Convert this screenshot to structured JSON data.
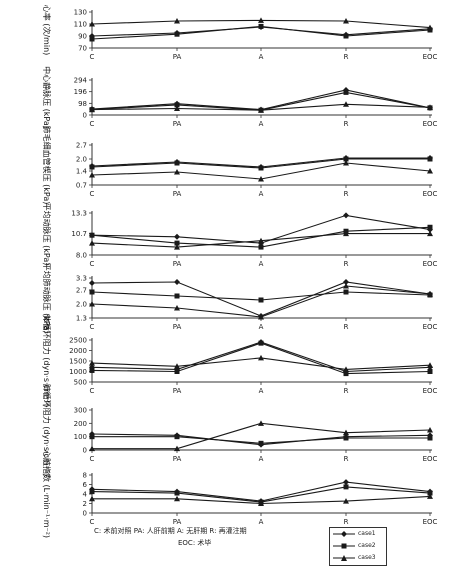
{
  "caption": {
    "line1": "C: 术前对照  PA: 人肝前期  A: 无肝期  R: 再灌注期",
    "line2": "EOC: 术毕"
  },
  "legend": [
    "case1",
    "case2",
    "case3"
  ],
  "colors": {
    "line": "#1a1a1a",
    "axis": "#333333"
  },
  "chart_data": [
    {
      "type": "line",
      "ylabel": "心率 (次/min)",
      "categories": [
        "C",
        "PA",
        "A",
        "R",
        "EOC"
      ],
      "yticks": [
        "130",
        "110",
        "90",
        "70"
      ],
      "ylim": [
        70,
        130
      ],
      "series": [
        {
          "name": "case1",
          "marker": "diamond",
          "values": [
            90,
            95,
            105,
            92,
            102
          ]
        },
        {
          "name": "case2",
          "marker": "square",
          "values": [
            85,
            93,
            106,
            90,
            100
          ]
        },
        {
          "name": "case3",
          "marker": "triangle",
          "values": [
            110,
            115,
            116,
            115,
            104
          ]
        }
      ]
    },
    {
      "type": "line",
      "ylabel": "中心静脉压 (kPa)",
      "categories": [
        "C",
        "PA",
        "A",
        "R",
        "EOC"
      ],
      "yticks": [
        "294",
        "196",
        "98",
        "0"
      ],
      "ylim": [
        0,
        294
      ],
      "series": [
        {
          "name": "case1",
          "marker": "diamond",
          "values": [
            50,
            95,
            45,
            210,
            60
          ]
        },
        {
          "name": "case2",
          "marker": "square",
          "values": [
            45,
            85,
            40,
            190,
            60
          ]
        },
        {
          "name": "case3",
          "marker": "triangle",
          "values": [
            45,
            55,
            40,
            90,
            65
          ]
        }
      ]
    },
    {
      "type": "line",
      "ylabel": "肺毛细血管楔压 (kPa)",
      "categories": [
        "C",
        "PA",
        "A",
        "R",
        "EOC"
      ],
      "yticks": [
        "2.7",
        "2.0",
        "1.4",
        "0.7"
      ],
      "ylim": [
        0.7,
        2.7
      ],
      "series": [
        {
          "name": "case1",
          "marker": "diamond",
          "values": [
            1.65,
            1.85,
            1.6,
            2.05,
            2.05
          ]
        },
        {
          "name": "case2",
          "marker": "square",
          "values": [
            1.6,
            1.8,
            1.55,
            2.0,
            2.0
          ]
        },
        {
          "name": "case3",
          "marker": "triangle",
          "values": [
            1.2,
            1.35,
            1.0,
            1.8,
            1.4
          ]
        }
      ]
    },
    {
      "type": "line",
      "ylabel": "平均动脉压 (kPa)",
      "categories": [
        "C",
        "PA",
        "A",
        "R",
        "EOC"
      ],
      "yticks": [
        "13.3",
        "10.7",
        "8.0"
      ],
      "ylim": [
        8.0,
        13.3
      ],
      "series": [
        {
          "name": "case1",
          "marker": "diamond",
          "values": [
            10.5,
            10.3,
            9.5,
            13.0,
            11.2
          ]
        },
        {
          "name": "case2",
          "marker": "square",
          "values": [
            10.5,
            9.5,
            9.0,
            11.0,
            11.5
          ]
        },
        {
          "name": "case3",
          "marker": "triangle",
          "values": [
            9.5,
            9.0,
            9.8,
            10.7,
            10.7
          ]
        }
      ]
    },
    {
      "type": "line",
      "ylabel": "平均肺动脉压 (kPa)",
      "categories": [
        "C",
        "PA",
        "A",
        "R",
        "EOC"
      ],
      "yticks": [
        "3.3",
        "2.7",
        "2.0",
        "1.3"
      ],
      "ylim": [
        1.3,
        3.3
      ],
      "series": [
        {
          "name": "case1",
          "marker": "diamond",
          "values": [
            3.05,
            3.1,
            1.4,
            3.1,
            2.5
          ]
        },
        {
          "name": "case2",
          "marker": "square",
          "values": [
            2.6,
            2.4,
            2.2,
            2.6,
            2.45
          ]
        },
        {
          "name": "case3",
          "marker": "triangle",
          "values": [
            2.0,
            1.8,
            1.35,
            2.9,
            2.5
          ]
        }
      ]
    },
    {
      "type": "line",
      "ylabel": "体循环阻力 (dyn·s·cm⁻⁵)",
      "categories": [
        "C",
        "PA",
        "A",
        "R",
        "EOC"
      ],
      "yticks": [
        "2500",
        "2000",
        "1500",
        "1000",
        "500"
      ],
      "ylim": [
        500,
        2500
      ],
      "series": [
        {
          "name": "case1",
          "marker": "diamond",
          "values": [
            1200,
            1100,
            2400,
            1000,
            1200
          ]
        },
        {
          "name": "case2",
          "marker": "square",
          "values": [
            1050,
            1000,
            2350,
            900,
            1000
          ]
        },
        {
          "name": "case3",
          "marker": "triangle",
          "values": [
            1400,
            1250,
            1650,
            1100,
            1300
          ]
        }
      ]
    },
    {
      "type": "line",
      "ylabel": "肺循环阻力 (dyn·s·cm⁻⁵)",
      "categories": [
        "C",
        "PA",
        "A",
        "R",
        "EOC"
      ],
      "yticks": [
        "300",
        "200",
        "100",
        "0"
      ],
      "ylim": [
        0,
        300
      ],
      "series": [
        {
          "name": "case1",
          "marker": "diamond",
          "values": [
            120,
            110,
            40,
            100,
            110
          ]
        },
        {
          "name": "case2",
          "marker": "square",
          "values": [
            100,
            100,
            50,
            90,
            90
          ]
        },
        {
          "name": "case3",
          "marker": "triangle",
          "values": [
            10,
            10,
            200,
            130,
            150
          ]
        }
      ]
    },
    {
      "type": "line",
      "ylabel": "心脏指数 (L·min⁻¹·m⁻²)",
      "categories": [
        "C",
        "PA",
        "A",
        "R",
        "EOC"
      ],
      "yticks": [
        "8",
        "6",
        "4",
        "2",
        "0"
      ],
      "ylim": [
        0,
        8
      ],
      "series": [
        {
          "name": "case1",
          "marker": "diamond",
          "values": [
            5.0,
            4.5,
            2.5,
            6.5,
            4.5
          ]
        },
        {
          "name": "case2",
          "marker": "square",
          "values": [
            4.5,
            4.2,
            2.3,
            5.5,
            4.2
          ]
        },
        {
          "name": "case3",
          "marker": "triangle",
          "values": [
            3.0,
            3.0,
            2.0,
            2.5,
            3.5
          ]
        }
      ]
    }
  ]
}
